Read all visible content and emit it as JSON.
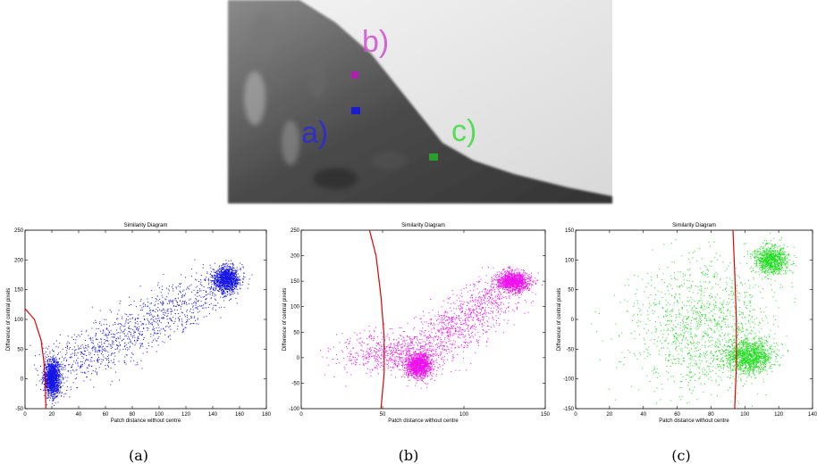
{
  "photo": {
    "labels": [
      {
        "text": "b)",
        "color": "#d14fd1"
      },
      {
        "text": "a)",
        "color": "#2a2ad9"
      },
      {
        "text": "c)",
        "color": "#3fdc3f"
      }
    ]
  },
  "captions": [
    "(a)",
    "(b)",
    "(c)"
  ],
  "chart_data": [
    {
      "type": "scatter",
      "title": "Similarity Diagram",
      "xlabel": "Patch distance without centre",
      "ylabel": "Difference of central pixels",
      "xlim": [
        0,
        180
      ],
      "ylim": [
        -50,
        250
      ],
      "xticks": [
        0,
        20,
        40,
        60,
        80,
        100,
        120,
        140,
        160,
        180
      ],
      "yticks": [
        -50,
        0,
        50,
        100,
        150,
        200,
        250
      ],
      "color": "#1515e6",
      "clusters": [
        {
          "cx": 20,
          "cy": 2,
          "sx": 3,
          "sy": 15,
          "n": 1400
        },
        {
          "cx": 150,
          "cy": 168,
          "sx": 5,
          "sy": 11,
          "n": 1200
        },
        {
          "from": [
            25,
            15
          ],
          "to": [
            140,
            155
          ],
          "spread": 20,
          "n": 1100
        }
      ],
      "curve": {
        "color": "#e00000",
        "points": [
          [
            0,
            118
          ],
          [
            7,
            100
          ],
          [
            12,
            65
          ],
          [
            14,
            30
          ],
          [
            15,
            0
          ],
          [
            15.5,
            -50
          ]
        ]
      }
    },
    {
      "type": "scatter",
      "title": "Similarity Diagram",
      "xlabel": "Patch distance without centre",
      "ylabel": "Difference of central pixels",
      "xlim": [
        0,
        150
      ],
      "ylim": [
        -100,
        250
      ],
      "xticks": [
        0,
        50,
        100,
        150
      ],
      "yticks": [
        -100,
        -50,
        0,
        50,
        100,
        150,
        200,
        250
      ],
      "color": "#ee10ee",
      "clusters": [
        {
          "cx": 72,
          "cy": -15,
          "sx": 4,
          "sy": 12,
          "n": 1300
        },
        {
          "cx": 130,
          "cy": 150,
          "sx": 5,
          "sy": 10,
          "n": 1200
        },
        {
          "from": [
            70,
            0
          ],
          "to": [
            125,
            140
          ],
          "spread": 18,
          "n": 1000
        },
        {
          "cx": 52,
          "cy": 10,
          "sx": 15,
          "sy": 20,
          "n": 500
        }
      ],
      "curve": {
        "color": "#e00000",
        "points": [
          [
            42,
            250
          ],
          [
            46,
            200
          ],
          [
            49,
            120
          ],
          [
            51,
            40
          ],
          [
            51,
            -30
          ],
          [
            49,
            -100
          ]
        ]
      }
    },
    {
      "type": "scatter",
      "title": "Similarity Diagram",
      "xlabel": "Patch distance without centre",
      "ylabel": "Difference of central pixels",
      "xlim": [
        0,
        140
      ],
      "ylim": [
        -150,
        150
      ],
      "xticks": [
        0,
        20,
        40,
        60,
        80,
        100,
        120,
        140
      ],
      "yticks": [
        -150,
        -100,
        -50,
        0,
        50,
        100,
        150
      ],
      "color": "#22dd22",
      "clusters": [
        {
          "cx": 102,
          "cy": -62,
          "sx": 7,
          "sy": 14,
          "n": 1300
        },
        {
          "cx": 115,
          "cy": 100,
          "sx": 5,
          "sy": 12,
          "n": 1000
        },
        {
          "cx": 75,
          "cy": -10,
          "sx": 22,
          "sy": 55,
          "n": 1300
        }
      ],
      "curve": {
        "color": "#e00000",
        "points": [
          [
            93,
            150
          ],
          [
            94,
            80
          ],
          [
            95,
            0
          ],
          [
            95,
            -80
          ],
          [
            94,
            -150
          ]
        ]
      }
    }
  ]
}
